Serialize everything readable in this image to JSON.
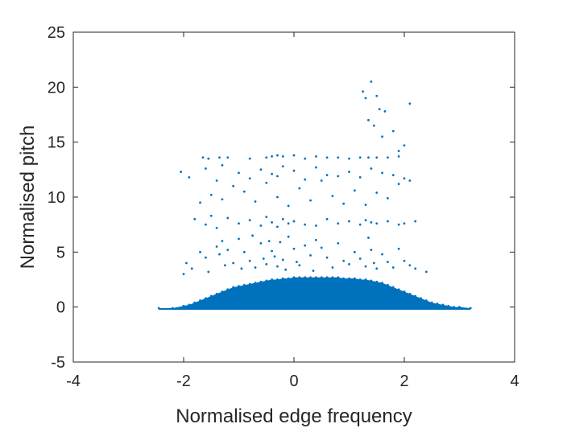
{
  "chart_data": {
    "type": "scatter",
    "title": "",
    "xlabel": "Normalised edge frequency",
    "ylabel": "Normalised pitch",
    "xlim": [
      -4,
      4
    ],
    "ylim": [
      -5,
      25
    ],
    "x_ticks": [
      -4,
      -2,
      0,
      2,
      4
    ],
    "x_tick_labels": [
      "-4",
      "-2",
      "0",
      "2",
      "4"
    ],
    "y_ticks": [
      -5,
      0,
      5,
      10,
      15,
      20,
      25
    ],
    "y_tick_labels": [
      "-5",
      "0",
      "5",
      "10",
      "15",
      "20",
      "25"
    ],
    "grid": false,
    "legend": "none",
    "marker_color": "#0072BD",
    "series": [
      {
        "x": [
          -2.45,
          -2.2,
          -2.0,
          -1.9,
          -1.8,
          -1.7,
          -1.6,
          -1.5,
          -1.4,
          -1.3,
          -1.2,
          -1.1,
          -1.0,
          -0.9,
          -0.8,
          -0.7,
          -0.6,
          -0.5,
          -0.4,
          -0.3,
          -0.2,
          -0.1,
          0.0,
          0.1,
          0.2,
          0.3,
          0.4,
          0.5,
          0.6,
          0.7,
          0.8,
          0.9,
          1.0,
          1.1,
          1.2,
          1.3,
          1.4,
          1.5,
          1.6,
          1.7,
          1.8,
          1.9,
          2.0,
          2.1,
          2.2,
          2.3,
          2.4,
          2.5,
          2.6,
          2.7,
          2.8,
          2.9,
          3.0,
          3.2,
          -2.0,
          -1.95,
          -1.85,
          -1.7,
          -1.6,
          -1.55,
          -1.4,
          -1.35,
          -1.3,
          -1.25,
          -1.2,
          -1.1,
          -1.0,
          -0.95,
          -0.9,
          -0.8,
          -0.75,
          -0.7,
          -0.6,
          -0.55,
          -0.5,
          -0.45,
          -0.4,
          -0.35,
          -0.3,
          -0.25,
          -0.2,
          -0.15,
          -0.1,
          0.0,
          0.05,
          0.1,
          0.2,
          0.3,
          0.35,
          0.4,
          0.5,
          0.6,
          0.7,
          0.8,
          0.9,
          1.0,
          1.1,
          1.2,
          1.3,
          1.35,
          1.4,
          1.45,
          1.5,
          1.6,
          1.7,
          1.8,
          1.9,
          2.0,
          2.1,
          2.2,
          2.4,
          -1.8,
          -1.6,
          -1.5,
          -1.4,
          -1.2,
          -1.0,
          -0.8,
          -0.6,
          -0.5,
          -0.4,
          -0.3,
          -0.2,
          -0.1,
          0.0,
          0.2,
          0.4,
          0.6,
          0.8,
          1.0,
          1.2,
          1.3,
          1.4,
          1.5,
          1.7,
          1.9,
          2.0,
          2.2,
          -1.7,
          -1.5,
          -1.3,
          -1.1,
          -0.9,
          -0.7,
          -0.5,
          -0.3,
          -0.1,
          0.1,
          0.3,
          0.5,
          0.7,
          0.9,
          1.1,
          1.3,
          1.5,
          1.7,
          1.9,
          -2.05,
          -1.9,
          -1.6,
          -1.4,
          -1.3,
          -1.0,
          -0.8,
          -0.6,
          -0.4,
          -0.3,
          -0.2,
          0.0,
          0.2,
          0.4,
          0.6,
          0.8,
          1.0,
          1.2,
          1.4,
          1.6,
          1.8,
          2.0,
          2.1,
          -1.65,
          -1.55,
          -1.35,
          -1.2,
          -0.8,
          -0.5,
          -0.4,
          -0.3,
          -0.2,
          0.0,
          0.2,
          0.4,
          0.6,
          0.8,
          1.0,
          1.2,
          1.35,
          1.5,
          1.7,
          1.9,
          1.25,
          1.3,
          1.35,
          1.4,
          1.45,
          1.5,
          1.55,
          1.6,
          1.65,
          1.8,
          1.9,
          2.0,
          2.1
        ],
        "y": [
          -0.1,
          -0.1,
          0.1,
          0.2,
          0.4,
          0.6,
          0.8,
          1.0,
          1.2,
          1.4,
          1.6,
          1.8,
          1.9,
          2.0,
          2.1,
          2.2,
          2.3,
          2.4,
          2.5,
          2.5,
          2.6,
          2.6,
          2.7,
          2.7,
          2.7,
          2.7,
          2.7,
          2.7,
          2.7,
          2.7,
          2.7,
          2.6,
          2.6,
          2.6,
          2.5,
          2.5,
          2.4,
          2.3,
          2.2,
          2.0,
          1.8,
          1.6,
          1.4,
          1.2,
          1.0,
          0.8,
          0.6,
          0.4,
          0.3,
          0.2,
          0.1,
          0.0,
          0.0,
          -0.1,
          3.0,
          4.0,
          3.5,
          5.0,
          4.5,
          3.2,
          5.5,
          4.8,
          6.0,
          3.8,
          5.2,
          4.0,
          6.2,
          3.5,
          5.0,
          4.2,
          6.5,
          3.6,
          5.8,
          4.4,
          3.9,
          6.0,
          5.1,
          4.6,
          3.7,
          5.9,
          4.3,
          3.4,
          6.4,
          5.3,
          4.1,
          3.8,
          5.6,
          4.7,
          3.3,
          6.1,
          5.4,
          4.5,
          3.6,
          5.8,
          4.2,
          3.9,
          5.0,
          4.4,
          3.7,
          6.3,
          5.2,
          4.0,
          3.5,
          4.8,
          4.1,
          3.6,
          5.3,
          4.2,
          3.8,
          3.5,
          3.2,
          8.0,
          7.5,
          8.3,
          7.2,
          8.1,
          7.6,
          7.9,
          7.4,
          8.2,
          7.7,
          7.3,
          8.0,
          7.6,
          7.8,
          7.5,
          7.4,
          8.0,
          7.6,
          7.8,
          7.5,
          7.9,
          7.7,
          7.6,
          7.8,
          7.5,
          7.6,
          7.8,
          9.5,
          10.2,
          9.8,
          11.0,
          10.5,
          9.6,
          11.3,
          10.0,
          9.2,
          10.8,
          9.7,
          11.5,
          10.1,
          9.4,
          10.6,
          9.3,
          10.4,
          9.9,
          11.2,
          12.3,
          11.8,
          12.6,
          11.5,
          12.9,
          12.2,
          11.7,
          12.5,
          12.1,
          11.9,
          12.8,
          12.4,
          11.6,
          12.7,
          12.0,
          11.9,
          12.3,
          11.8,
          12.6,
          12.2,
          12.0,
          11.7,
          11.5,
          13.6,
          13.5,
          13.6,
          13.6,
          13.5,
          13.6,
          13.7,
          13.8,
          13.7,
          13.8,
          13.5,
          13.7,
          13.6,
          13.6,
          13.5,
          13.6,
          13.6,
          13.6,
          13.6,
          13.7,
          19.6,
          19.0,
          17.0,
          20.5,
          16.5,
          19.2,
          18.0,
          15.5,
          17.8,
          16.0,
          14.2,
          14.7,
          18.5
        ]
      }
    ]
  }
}
